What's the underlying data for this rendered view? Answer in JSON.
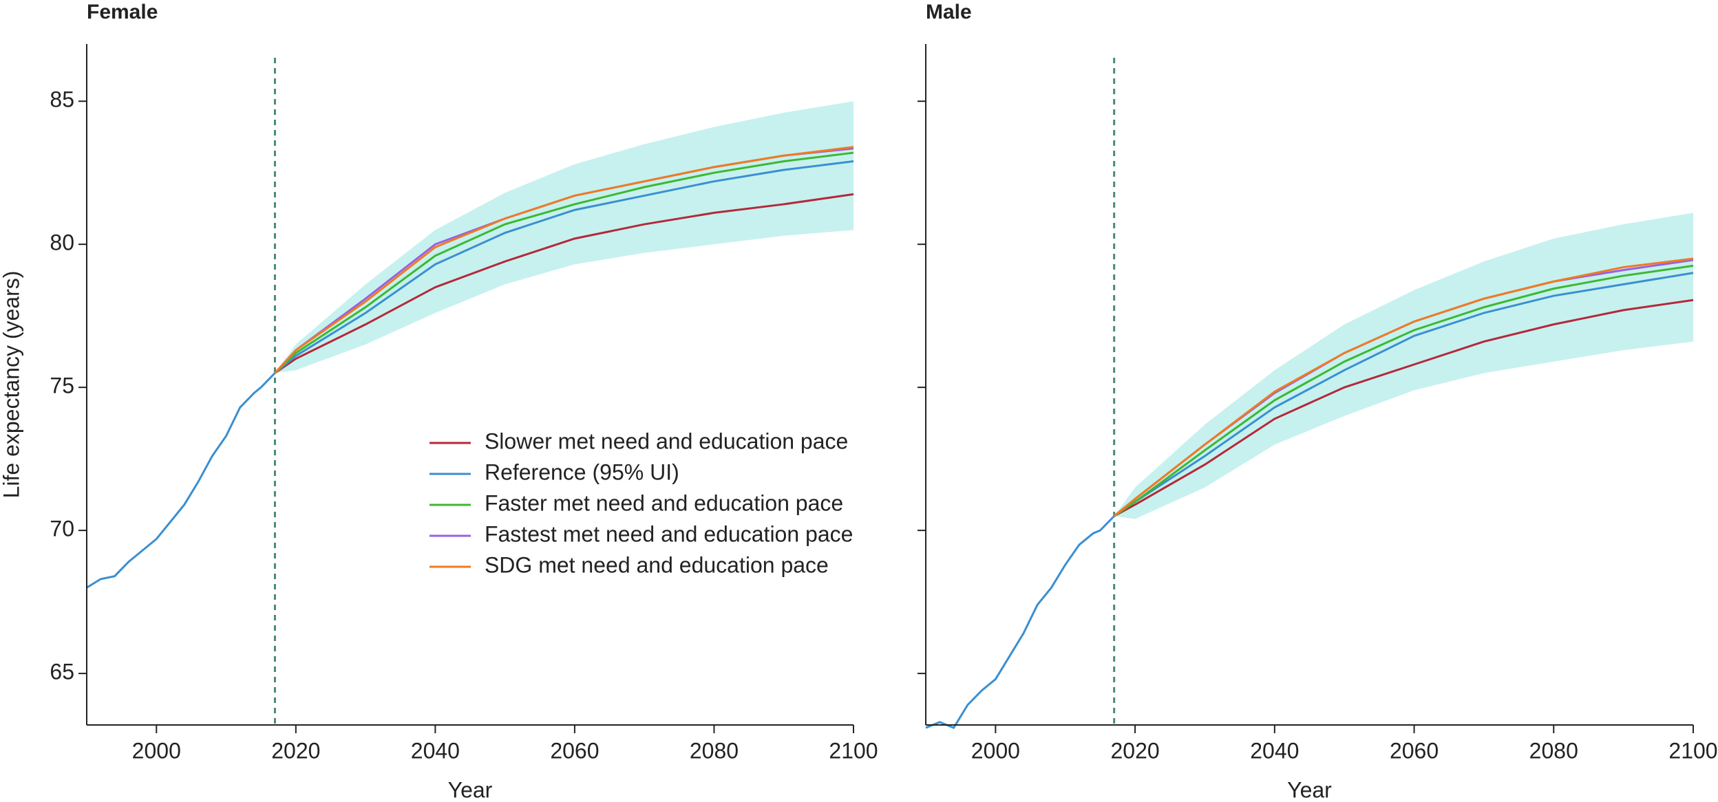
{
  "chart_data": [
    {
      "type": "line",
      "title": "Female",
      "x_label": "Year",
      "y_label": "Life expectancy (years)",
      "x": [
        1990,
        1992,
        1994,
        1996,
        1998,
        2000,
        2002,
        2004,
        2006,
        2008,
        2010,
        2012,
        2014,
        2015,
        2017,
        2020,
        2030,
        2040,
        2050,
        2060,
        2070,
        2080,
        2090,
        2100
      ],
      "xlim": [
        1990,
        2100
      ],
      "xticks": [
        2000,
        2020,
        2040,
        2060,
        2080,
        2100
      ],
      "ylim": [
        63.2,
        87
      ],
      "yticks": [
        65,
        70,
        75,
        80,
        85
      ],
      "vline": 2017,
      "vline_color": "#4a8a72",
      "legend": "lower right",
      "ui_color": "#c6f1ee",
      "ui_lower": [
        null,
        null,
        null,
        null,
        null,
        null,
        null,
        null,
        null,
        null,
        null,
        null,
        null,
        null,
        75.5,
        75.6,
        76.5,
        77.6,
        78.6,
        79.3,
        79.7,
        80.0,
        80.3,
        80.5
      ],
      "ui_upper": [
        null,
        null,
        null,
        null,
        null,
        null,
        null,
        null,
        null,
        null,
        null,
        null,
        null,
        null,
        75.5,
        76.5,
        78.6,
        80.5,
        81.8,
        82.8,
        83.5,
        84.1,
        84.6,
        85.0
      ],
      "series": [
        {
          "name": "Slower met need and education pace",
          "color": "#b5283a",
          "values": [
            null,
            null,
            null,
            null,
            null,
            null,
            null,
            null,
            null,
            null,
            null,
            null,
            null,
            null,
            75.5,
            76.0,
            77.2,
            78.5,
            79.4,
            80.2,
            80.7,
            81.1,
            81.4,
            81.75
          ]
        },
        {
          "name": "Reference (95% UI)",
          "color": "#3a8fd1",
          "values": [
            68.0,
            68.3,
            68.4,
            68.9,
            69.3,
            69.7,
            70.3,
            70.9,
            71.7,
            72.6,
            73.3,
            74.3,
            74.8,
            75.0,
            75.5,
            76.1,
            77.6,
            79.3,
            80.4,
            81.2,
            81.7,
            82.2,
            82.6,
            82.9
          ]
        },
        {
          "name": "Faster met need and education pace",
          "color": "#3cb832",
          "values": [
            null,
            null,
            null,
            null,
            null,
            null,
            null,
            null,
            null,
            null,
            null,
            null,
            null,
            null,
            75.5,
            76.2,
            77.8,
            79.6,
            80.7,
            81.4,
            82.0,
            82.5,
            82.9,
            83.2
          ]
        },
        {
          "name": "Fastest met need and education pace",
          "color": "#9b5fe0",
          "values": [
            null,
            null,
            null,
            null,
            null,
            null,
            null,
            null,
            null,
            null,
            null,
            null,
            null,
            null,
            75.5,
            76.3,
            78.1,
            80.0,
            80.9,
            81.7,
            82.2,
            82.7,
            83.1,
            83.35
          ]
        },
        {
          "name": "SDG met need and education pace",
          "color": "#f07a22",
          "values": [
            null,
            null,
            null,
            null,
            null,
            null,
            null,
            null,
            null,
            null,
            null,
            null,
            null,
            null,
            75.5,
            76.3,
            78.0,
            79.9,
            80.9,
            81.7,
            82.2,
            82.7,
            83.1,
            83.4
          ]
        }
      ]
    },
    {
      "type": "line",
      "title": "Male",
      "x_label": "Year",
      "x": [
        1990,
        1992,
        1994,
        1996,
        1998,
        2000,
        2002,
        2004,
        2006,
        2008,
        2010,
        2012,
        2014,
        2015,
        2017,
        2020,
        2030,
        2040,
        2050,
        2060,
        2070,
        2080,
        2090,
        2100
      ],
      "xlim": [
        1990,
        2100
      ],
      "xticks": [
        2000,
        2020,
        2040,
        2060,
        2080,
        2100
      ],
      "ylim": [
        63.2,
        87
      ],
      "yticks": [
        65,
        70,
        75,
        80,
        85
      ],
      "vline": 2017,
      "vline_color": "#4a8a72",
      "ui_color": "#c6f1ee",
      "ui_lower": [
        null,
        null,
        null,
        null,
        null,
        null,
        null,
        null,
        null,
        null,
        null,
        null,
        null,
        null,
        70.5,
        70.4,
        71.5,
        73.0,
        74.0,
        74.9,
        75.5,
        75.9,
        76.3,
        76.6
      ],
      "ui_upper": [
        null,
        null,
        null,
        null,
        null,
        null,
        null,
        null,
        null,
        null,
        null,
        null,
        null,
        null,
        70.5,
        71.5,
        73.7,
        75.6,
        77.2,
        78.4,
        79.4,
        80.2,
        80.7,
        81.1
      ],
      "series": [
        {
          "color": "#b5283a",
          "values": [
            null,
            null,
            null,
            null,
            null,
            null,
            null,
            null,
            null,
            null,
            null,
            null,
            null,
            null,
            70.5,
            70.9,
            72.3,
            73.9,
            75.0,
            75.8,
            76.6,
            77.2,
            77.7,
            78.05
          ]
        },
        {
          "color": "#3a8fd1",
          "values": [
            63.1,
            63.3,
            63.1,
            63.9,
            64.4,
            64.8,
            65.6,
            66.4,
            67.4,
            68.0,
            68.8,
            69.5,
            69.9,
            70.0,
            70.5,
            71.0,
            72.6,
            74.3,
            75.6,
            76.8,
            77.6,
            78.2,
            78.6,
            79.0
          ]
        },
        {
          "color": "#3cb832",
          "values": [
            null,
            null,
            null,
            null,
            null,
            null,
            null,
            null,
            null,
            null,
            null,
            null,
            null,
            null,
            70.5,
            71.0,
            72.8,
            74.55,
            75.9,
            77.0,
            77.8,
            78.45,
            78.9,
            79.25
          ]
        },
        {
          "color": "#9b5fe0",
          "values": [
            null,
            null,
            null,
            null,
            null,
            null,
            null,
            null,
            null,
            null,
            null,
            null,
            null,
            null,
            70.5,
            71.1,
            73.0,
            74.8,
            76.2,
            77.3,
            78.1,
            78.7,
            79.1,
            79.45
          ]
        },
        {
          "color": "#f07a22",
          "values": [
            null,
            null,
            null,
            null,
            null,
            null,
            null,
            null,
            null,
            null,
            null,
            null,
            null,
            null,
            70.5,
            71.1,
            73.0,
            74.85,
            76.2,
            77.3,
            78.1,
            78.7,
            79.2,
            79.5
          ]
        }
      ]
    }
  ]
}
